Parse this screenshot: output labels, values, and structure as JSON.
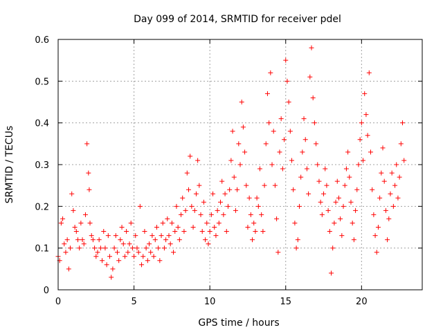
{
  "chart_data": {
    "type": "scatter",
    "title": "Day 099 of 2014, SRMTID for receiver pdel",
    "xlabel": "GPS time / hours",
    "ylabel": "SRMTID / TECUs",
    "xlim": [
      0,
      24
    ],
    "ylim": [
      0,
      0.6
    ],
    "x_ticks": [
      0,
      5,
      10,
      15,
      20
    ],
    "y_ticks": [
      0,
      0.1,
      0.2,
      0.3,
      0.4,
      0.5,
      0.6
    ],
    "x_tick_labels": [
      "0",
      "5",
      "10",
      "15",
      "20"
    ],
    "y_tick_labels": [
      "0",
      "0.1",
      "0.2",
      "0.3",
      "0.4",
      "0.5",
      "0.6"
    ],
    "grid": true,
    "marker": "+",
    "series": [
      {
        "name": "SRMTID",
        "color": "#ff0000",
        "points": [
          [
            0.0,
            0.08
          ],
          [
            0.1,
            0.07
          ],
          [
            0.2,
            0.16
          ],
          [
            0.3,
            0.17
          ],
          [
            0.4,
            0.11
          ],
          [
            0.5,
            0.09
          ],
          [
            0.6,
            0.12
          ],
          [
            0.7,
            0.05
          ],
          [
            0.8,
            0.1
          ],
          [
            0.9,
            0.23
          ],
          [
            1.0,
            0.19
          ],
          [
            1.1,
            0.15
          ],
          [
            1.2,
            0.14
          ],
          [
            1.3,
            0.12
          ],
          [
            1.4,
            0.1
          ],
          [
            1.5,
            0.16
          ],
          [
            1.6,
            0.12
          ],
          [
            1.7,
            0.11
          ],
          [
            1.8,
            0.18
          ],
          [
            1.9,
            0.35
          ],
          [
            2.0,
            0.28
          ],
          [
            2.05,
            0.24
          ],
          [
            2.1,
            0.16
          ],
          [
            2.2,
            0.13
          ],
          [
            2.3,
            0.12
          ],
          [
            2.4,
            0.1
          ],
          [
            2.5,
            0.08
          ],
          [
            2.6,
            0.09
          ],
          [
            2.7,
            0.12
          ],
          [
            2.8,
            0.1
          ],
          [
            2.9,
            0.07
          ],
          [
            3.0,
            0.14
          ],
          [
            3.1,
            0.1
          ],
          [
            3.2,
            0.06
          ],
          [
            3.3,
            0.13
          ],
          [
            3.4,
            0.08
          ],
          [
            3.5,
            0.03
          ],
          [
            3.6,
            0.05
          ],
          [
            3.7,
            0.1
          ],
          [
            3.8,
            0.13
          ],
          [
            3.9,
            0.09
          ],
          [
            4.0,
            0.07
          ],
          [
            4.1,
            0.12
          ],
          [
            4.2,
            0.15
          ],
          [
            4.3,
            0.11
          ],
          [
            4.4,
            0.08
          ],
          [
            4.5,
            0.14
          ],
          [
            4.6,
            0.09
          ],
          [
            4.7,
            0.11
          ],
          [
            4.8,
            0.16
          ],
          [
            4.9,
            0.1
          ],
          [
            5.0,
            0.08
          ],
          [
            5.1,
            0.13
          ],
          [
            5.2,
            0.1
          ],
          [
            5.3,
            0.09
          ],
          [
            5.4,
            0.2
          ],
          [
            5.5,
            0.06
          ],
          [
            5.6,
            0.08
          ],
          [
            5.7,
            0.14
          ],
          [
            5.8,
            0.1
          ],
          [
            5.9,
            0.07
          ],
          [
            6.0,
            0.11
          ],
          [
            6.1,
            0.09
          ],
          [
            6.2,
            0.13
          ],
          [
            6.3,
            0.08
          ],
          [
            6.4,
            0.12
          ],
          [
            6.5,
            0.15
          ],
          [
            6.6,
            0.1
          ],
          [
            6.7,
            0.07
          ],
          [
            6.8,
            0.13
          ],
          [
            6.9,
            0.16
          ],
          [
            7.0,
            0.1
          ],
          [
            7.1,
            0.12
          ],
          [
            7.2,
            0.17
          ],
          [
            7.3,
            0.13
          ],
          [
            7.4,
            0.11
          ],
          [
            7.5,
            0.16
          ],
          [
            7.6,
            0.09
          ],
          [
            7.7,
            0.14
          ],
          [
            7.8,
            0.2
          ],
          [
            7.9,
            0.15
          ],
          [
            8.0,
            0.12
          ],
          [
            8.1,
            0.18
          ],
          [
            8.2,
            0.22
          ],
          [
            8.3,
            0.14
          ],
          [
            8.4,
            0.19
          ],
          [
            8.5,
            0.28
          ],
          [
            8.6,
            0.24
          ],
          [
            8.7,
            0.32
          ],
          [
            8.8,
            0.2
          ],
          [
            8.9,
            0.15
          ],
          [
            9.0,
            0.19
          ],
          [
            9.1,
            0.23
          ],
          [
            9.2,
            0.31
          ],
          [
            9.3,
            0.25
          ],
          [
            9.4,
            0.18
          ],
          [
            9.5,
            0.14
          ],
          [
            9.6,
            0.21
          ],
          [
            9.7,
            0.12
          ],
          [
            9.8,
            0.16
          ],
          [
            9.9,
            0.11
          ],
          [
            10.0,
            0.14
          ],
          [
            10.1,
            0.18
          ],
          [
            10.2,
            0.23
          ],
          [
            10.3,
            0.15
          ],
          [
            10.4,
            0.13
          ],
          [
            10.5,
            0.19
          ],
          [
            10.6,
            0.16
          ],
          [
            10.7,
            0.21
          ],
          [
            10.8,
            0.26
          ],
          [
            10.9,
            0.18
          ],
          [
            11.0,
            0.23
          ],
          [
            11.1,
            0.14
          ],
          [
            11.2,
            0.2
          ],
          [
            11.3,
            0.24
          ],
          [
            11.4,
            0.31
          ],
          [
            11.5,
            0.38
          ],
          [
            11.6,
            0.27
          ],
          [
            11.7,
            0.19
          ],
          [
            11.8,
            0.24
          ],
          [
            11.9,
            0.35
          ],
          [
            12.0,
            0.3
          ],
          [
            12.1,
            0.45
          ],
          [
            12.2,
            0.39
          ],
          [
            12.3,
            0.33
          ],
          [
            12.4,
            0.25
          ],
          [
            12.5,
            0.15
          ],
          [
            12.6,
            0.22
          ],
          [
            12.7,
            0.18
          ],
          [
            12.8,
            0.12
          ],
          [
            12.9,
            0.16
          ],
          [
            13.0,
            0.14
          ],
          [
            13.1,
            0.22
          ],
          [
            13.2,
            0.2
          ],
          [
            13.3,
            0.29
          ],
          [
            13.4,
            0.18
          ],
          [
            13.5,
            0.14
          ],
          [
            13.6,
            0.25
          ],
          [
            13.7,
            0.35
          ],
          [
            13.8,
            0.47
          ],
          [
            13.9,
            0.4
          ],
          [
            14.0,
            0.52
          ],
          [
            14.1,
            0.3
          ],
          [
            14.2,
            0.38
          ],
          [
            14.3,
            0.25
          ],
          [
            14.4,
            0.17
          ],
          [
            14.5,
            0.09
          ],
          [
            14.6,
            0.33
          ],
          [
            14.7,
            0.41
          ],
          [
            14.8,
            0.29
          ],
          [
            14.9,
            0.36
          ],
          [
            15.0,
            0.55
          ],
          [
            15.1,
            0.5
          ],
          [
            15.2,
            0.45
          ],
          [
            15.3,
            0.38
          ],
          [
            15.4,
            0.31
          ],
          [
            15.5,
            0.24
          ],
          [
            15.6,
            0.16
          ],
          [
            15.7,
            0.1
          ],
          [
            15.8,
            0.12
          ],
          [
            15.9,
            0.2
          ],
          [
            16.0,
            0.27
          ],
          [
            16.1,
            0.33
          ],
          [
            16.2,
            0.41
          ],
          [
            16.3,
            0.36
          ],
          [
            16.4,
            0.29
          ],
          [
            16.5,
            0.23
          ],
          [
            16.6,
            0.51
          ],
          [
            16.7,
            0.58
          ],
          [
            16.8,
            0.46
          ],
          [
            16.9,
            0.4
          ],
          [
            17.0,
            0.35
          ],
          [
            17.1,
            0.3
          ],
          [
            17.2,
            0.26
          ],
          [
            17.3,
            0.21
          ],
          [
            17.4,
            0.18
          ],
          [
            17.5,
            0.23
          ],
          [
            17.6,
            0.29
          ],
          [
            17.7,
            0.25
          ],
          [
            17.8,
            0.19
          ],
          [
            17.9,
            0.14
          ],
          [
            18.0,
            0.04
          ],
          [
            18.1,
            0.1
          ],
          [
            18.2,
            0.16
          ],
          [
            18.3,
            0.21
          ],
          [
            18.4,
            0.26
          ],
          [
            18.5,
            0.22
          ],
          [
            18.6,
            0.17
          ],
          [
            18.7,
            0.13
          ],
          [
            18.8,
            0.2
          ],
          [
            18.9,
            0.25
          ],
          [
            19.0,
            0.29
          ],
          [
            19.1,
            0.33
          ],
          [
            19.2,
            0.27
          ],
          [
            19.3,
            0.21
          ],
          [
            19.4,
            0.16
          ],
          [
            19.5,
            0.12
          ],
          [
            19.6,
            0.19
          ],
          [
            19.7,
            0.24
          ],
          [
            19.8,
            0.3
          ],
          [
            19.9,
            0.36
          ],
          [
            20.0,
            0.4
          ],
          [
            20.1,
            0.31
          ],
          [
            20.2,
            0.47
          ],
          [
            20.3,
            0.42
          ],
          [
            20.4,
            0.37
          ],
          [
            20.5,
            0.52
          ],
          [
            20.6,
            0.33
          ],
          [
            20.7,
            0.24
          ],
          [
            20.8,
            0.18
          ],
          [
            20.9,
            0.13
          ],
          [
            21.0,
            0.09
          ],
          [
            21.1,
            0.15
          ],
          [
            21.2,
            0.22
          ],
          [
            21.3,
            0.28
          ],
          [
            21.4,
            0.34
          ],
          [
            21.5,
            0.26
          ],
          [
            21.6,
            0.19
          ],
          [
            21.7,
            0.12
          ],
          [
            21.8,
            0.17
          ],
          [
            21.9,
            0.23
          ],
          [
            22.0,
            0.28
          ],
          [
            22.1,
            0.2
          ],
          [
            22.2,
            0.25
          ],
          [
            22.3,
            0.3
          ],
          [
            22.4,
            0.22
          ],
          [
            22.5,
            0.27
          ],
          [
            22.6,
            0.35
          ],
          [
            22.7,
            0.4
          ],
          [
            22.8,
            0.31
          ]
        ]
      }
    ]
  }
}
